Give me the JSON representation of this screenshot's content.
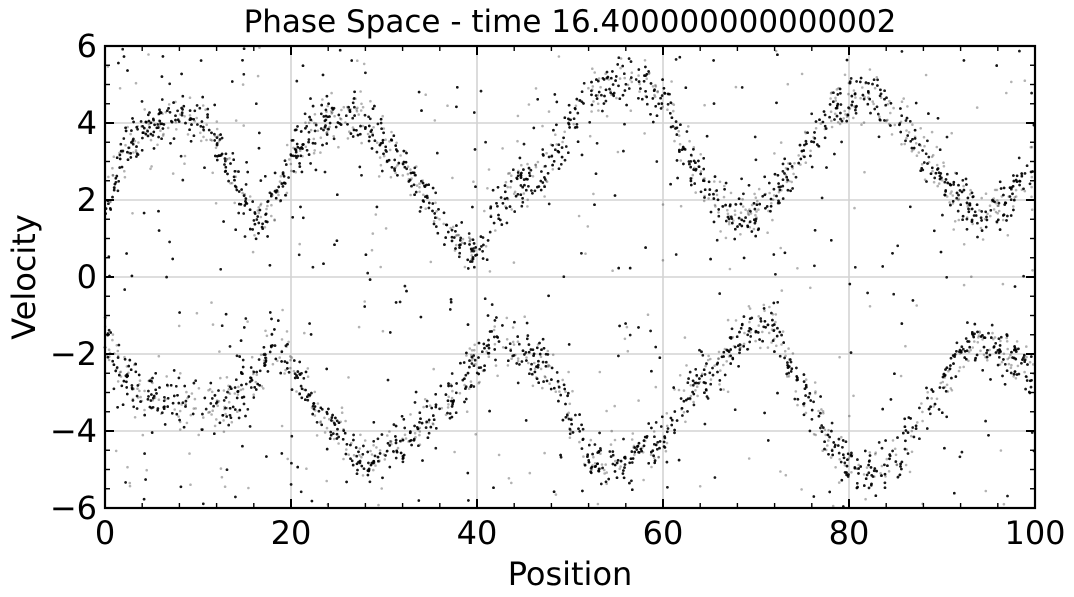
{
  "chart_data": {
    "type": "scatter",
    "title": "Phase Space - time 16.400000000000002",
    "xlabel": "Position",
    "ylabel": "Velocity",
    "xlim": [
      0,
      100
    ],
    "ylim": [
      -6,
      6
    ],
    "x_ticks": [
      0,
      20,
      40,
      60,
      80,
      100
    ],
    "y_ticks": [
      -6,
      -4,
      -2,
      0,
      2,
      4,
      6
    ],
    "x_tick_labels": [
      "0",
      "20",
      "40",
      "60",
      "80",
      "100"
    ],
    "y_tick_labels": [
      "−6",
      "−4",
      "−2",
      "0",
      "2",
      "4",
      "6"
    ],
    "grid": true,
    "marker_color": "#000000",
    "approx_point_count": 16000,
    "series": [
      {
        "structure": "bands of particles, velocity vs position",
        "x": [
          0,
          2,
          4,
          6,
          8,
          10,
          12,
          14,
          16,
          18,
          20,
          22,
          24,
          26,
          28,
          30,
          32,
          34,
          36,
          38,
          40,
          42,
          44,
          46,
          48,
          50,
          52,
          54,
          56,
          58,
          60,
          62,
          64,
          66,
          68,
          70,
          72,
          74,
          76,
          78,
          80,
          82,
          84,
          86,
          88,
          90,
          92,
          94,
          96,
          98,
          100
        ],
        "upper_band_y": [
          2.0,
          3.2,
          3.8,
          4.1,
          4.2,
          4.1,
          3.6,
          2.5,
          1.5,
          1.8,
          3.0,
          3.7,
          4.1,
          4.2,
          4.0,
          3.5,
          2.8,
          2.2,
          1.5,
          0.9,
          0.7,
          1.8,
          2.4,
          2.6,
          3.0,
          4.0,
          4.6,
          5.0,
          5.2,
          5.0,
          4.5,
          3.5,
          2.5,
          1.8,
          1.5,
          1.6,
          2.2,
          2.8,
          3.6,
          4.3,
          4.6,
          4.6,
          4.4,
          3.9,
          3.2,
          2.5,
          2.0,
          1.6,
          1.8,
          2.3,
          2.8
        ],
        "lower_band_y": [
          -1.5,
          -2.6,
          -3.0,
          -3.1,
          -3.3,
          -3.5,
          -3.4,
          -3.2,
          -2.6,
          -1.8,
          -2.2,
          -3.2,
          -3.8,
          -4.5,
          -4.8,
          -4.6,
          -4.2,
          -3.8,
          -3.4,
          -2.8,
          -2.2,
          -1.5,
          -1.9,
          -2.1,
          -2.5,
          -3.6,
          -4.6,
          -4.9,
          -4.8,
          -4.6,
          -4.2,
          -3.4,
          -2.6,
          -2.2,
          -1.6,
          -1.2,
          -1.4,
          -2.6,
          -3.4,
          -4.3,
          -4.9,
          -5.1,
          -4.9,
          -4.3,
          -3.6,
          -2.8,
          -2.0,
          -1.6,
          -1.8,
          -2.2,
          -2.6
        ]
      }
    ]
  }
}
